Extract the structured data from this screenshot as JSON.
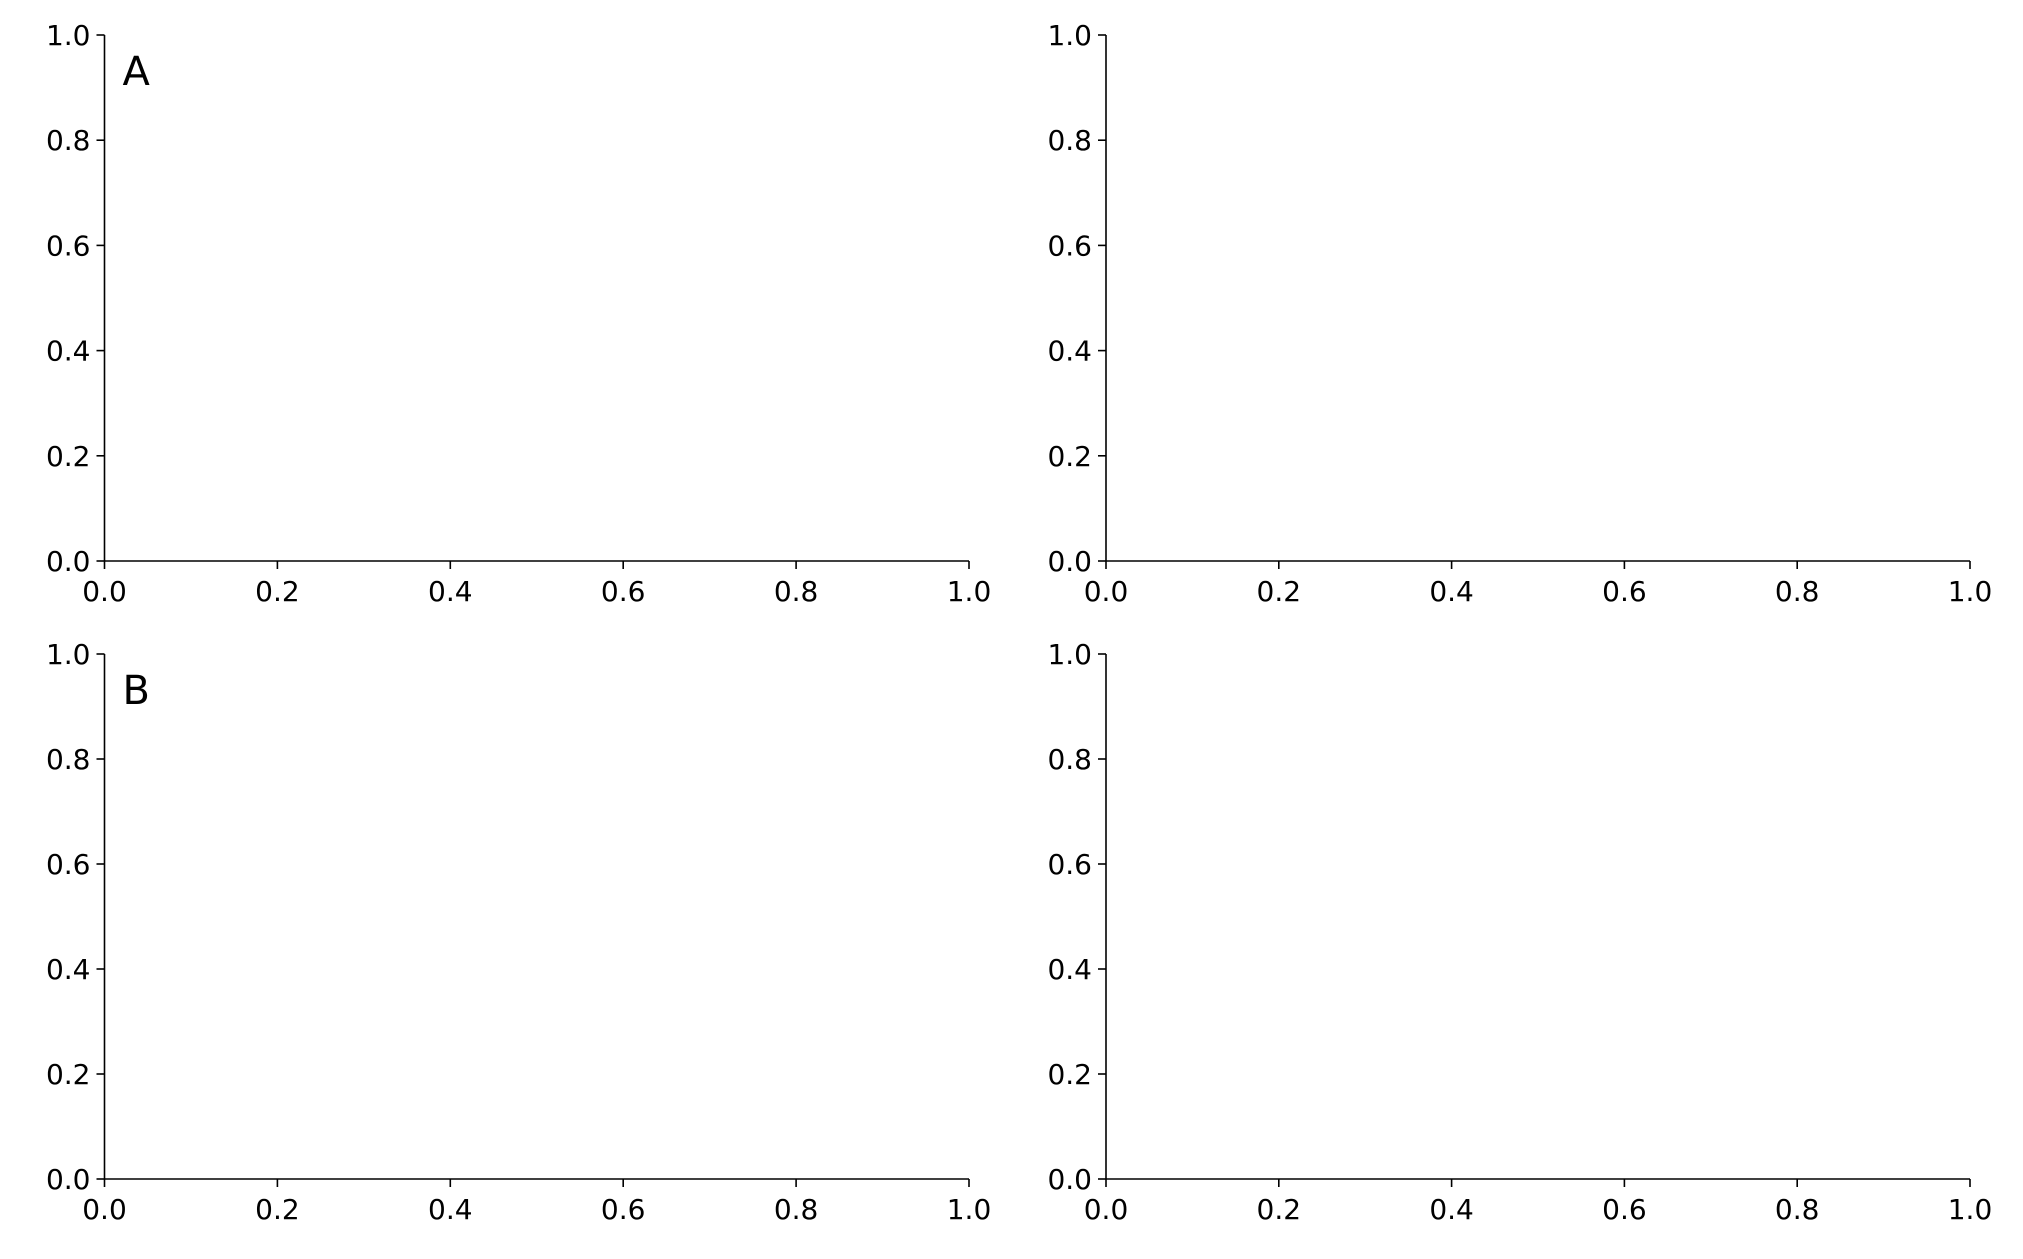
{
  "chart_data": [
    {
      "type": "empty",
      "annotation": "A",
      "xlim": [
        0,
        1
      ],
      "ylim": [
        0,
        1
      ],
      "xticks": [
        {
          "value": 0,
          "label": "0.0"
        },
        {
          "value": 0.2,
          "label": "0.2"
        },
        {
          "value": 0.4,
          "label": "0.4"
        },
        {
          "value": 0.6,
          "label": "0.6"
        },
        {
          "value": 0.8,
          "label": "0.8"
        },
        {
          "value": 1,
          "label": "1.0"
        }
      ],
      "yticks": [
        {
          "value": 0,
          "label": "0.0"
        },
        {
          "value": 0.2,
          "label": "0.2"
        },
        {
          "value": 0.4,
          "label": "0.4"
        },
        {
          "value": 0.6,
          "label": "0.6"
        },
        {
          "value": 0.8,
          "label": "0.8"
        },
        {
          "value": 1,
          "label": "1.0"
        }
      ]
    },
    {
      "type": "empty",
      "xlim": [
        0,
        1
      ],
      "ylim": [
        0,
        1
      ],
      "xticks": [
        {
          "value": 0,
          "label": "0.0"
        },
        {
          "value": 0.2,
          "label": "0.2"
        },
        {
          "value": 0.4,
          "label": "0.4"
        },
        {
          "value": 0.6,
          "label": "0.6"
        },
        {
          "value": 0.8,
          "label": "0.8"
        },
        {
          "value": 1,
          "label": "1.0"
        }
      ],
      "yticks": [
        {
          "value": 0,
          "label": "0.0"
        },
        {
          "value": 0.2,
          "label": "0.2"
        },
        {
          "value": 0.4,
          "label": "0.4"
        },
        {
          "value": 0.6,
          "label": "0.6"
        },
        {
          "value": 0.8,
          "label": "0.8"
        },
        {
          "value": 1,
          "label": "1.0"
        }
      ]
    },
    {
      "type": "empty",
      "annotation": "B",
      "xlim": [
        0,
        1
      ],
      "ylim": [
        0,
        1
      ],
      "xticks": [
        {
          "value": 0,
          "label": "0.0"
        },
        {
          "value": 0.2,
          "label": "0.2"
        },
        {
          "value": 0.4,
          "label": "0.4"
        },
        {
          "value": 0.6,
          "label": "0.6"
        },
        {
          "value": 0.8,
          "label": "0.8"
        },
        {
          "value": 1,
          "label": "1.0"
        }
      ],
      "yticks": [
        {
          "value": 0,
          "label": "0.0"
        },
        {
          "value": 0.2,
          "label": "0.2"
        },
        {
          "value": 0.4,
          "label": "0.4"
        },
        {
          "value": 0.6,
          "label": "0.6"
        },
        {
          "value": 0.8,
          "label": "0.8"
        },
        {
          "value": 1,
          "label": "1.0"
        }
      ]
    },
    {
      "type": "empty",
      "xlim": [
        0,
        1
      ],
      "ylim": [
        0,
        1
      ],
      "xticks": [
        {
          "value": 0,
          "label": "0.0"
        },
        {
          "value": 0.2,
          "label": "0.2"
        },
        {
          "value": 0.4,
          "label": "0.4"
        },
        {
          "value": 0.6,
          "label": "0.6"
        },
        {
          "value": 0.8,
          "label": "0.8"
        },
        {
          "value": 1,
          "label": "1.0"
        }
      ],
      "yticks": [
        {
          "value": 0,
          "label": "0.0"
        },
        {
          "value": 0.2,
          "label": "0.2"
        },
        {
          "value": 0.4,
          "label": "0.4"
        },
        {
          "value": 0.6,
          "label": "0.6"
        },
        {
          "value": 0.8,
          "label": "0.8"
        },
        {
          "value": 1,
          "label": "1.0"
        }
      ]
    }
  ]
}
